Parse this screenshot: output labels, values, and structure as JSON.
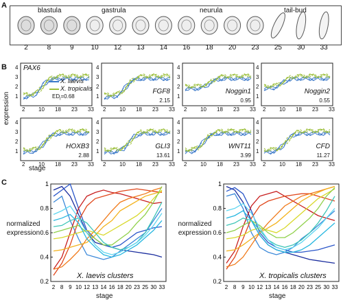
{
  "panels": {
    "a": "A",
    "b": "B",
    "c": "C"
  },
  "panelA": {
    "groups": [
      "blastula",
      "gastrula",
      "neurula",
      "tail-bud"
    ],
    "stages": [
      "2",
      "8",
      "9",
      "10",
      "12",
      "13",
      "14",
      "16",
      "18",
      "20",
      "23",
      "25",
      "30",
      "33"
    ]
  },
  "panelB": {
    "ylabel": "expression",
    "xlabel": "stage",
    "ed_label": "ED",
    "ed_sub": "i",
    "legend": [
      {
        "name": "X. laevis",
        "color": "#3a78c9"
      },
      {
        "name": "X. tropicalis",
        "color": "#9cbf3a"
      }
    ],
    "x_ticks": [
      "2",
      "10",
      "18",
      "23",
      "33"
    ],
    "genes": [
      {
        "name": "PAX6",
        "value": "0.68",
        "y_ticks": [
          "4",
          "3",
          "2",
          "1"
        ]
      },
      {
        "name": "FGF8",
        "value": "2.15",
        "y_ticks": [
          "4",
          "3",
          "2",
          "1"
        ]
      },
      {
        "name": "Noggin1",
        "value": "0.95",
        "y_ticks": [
          "4",
          "3",
          "2",
          "1"
        ]
      },
      {
        "name": "Noggin2",
        "value": "0.55",
        "y_ticks": [
          "4",
          "3",
          "2",
          "1"
        ]
      },
      {
        "name": "HOXB3",
        "value": "2.88",
        "y_ticks": [
          "4",
          "3",
          "2",
          "1"
        ]
      },
      {
        "name": "GLI3",
        "value": "13.61",
        "y_ticks": [
          "4",
          "3",
          "2",
          "1"
        ]
      },
      {
        "name": "WNT11",
        "value": "3.99",
        "y_ticks": [
          "4",
          "3",
          "2",
          "1"
        ]
      },
      {
        "name": "CFD",
        "value": "11.27",
        "y_ticks": [
          "4",
          "3",
          "2",
          "1"
        ]
      }
    ]
  },
  "panelC": {
    "ylabel_line1": "normalized",
    "ylabel_line2": "expression",
    "xlabel": "stage",
    "y_ticks": [
      "1",
      "0.8",
      "0.6",
      "0.4",
      "0.2"
    ],
    "x_ticks": [
      "2",
      "8",
      "9",
      "10",
      "12",
      "13",
      "14",
      "16",
      "18",
      "20",
      "23",
      "25",
      "30",
      "33"
    ],
    "left_title": "X. laevis clusters",
    "right_title": "X. tropicalis clusters"
  },
  "colors": {
    "laevis": "#3a78c9",
    "tropicalis": "#9cbf3a"
  },
  "chart_data": [
    {
      "type": "line",
      "title": "X. laevis clusters",
      "xlabel": "stage",
      "ylabel": "normalized expression",
      "ylim": [
        0.2,
        1
      ],
      "x": [
        "2",
        "8",
        "9",
        "10",
        "12",
        "13",
        "14",
        "16",
        "18",
        "20",
        "23",
        "25",
        "30",
        "33"
      ],
      "series": [
        {
          "values": [
            0.95,
            0.98,
            0.9,
            0.75,
            0.6,
            0.52,
            0.5,
            0.48,
            0.46,
            0.45,
            0.44,
            0.43,
            0.42,
            0.4
          ],
          "color": "#1a2d9e"
        },
        {
          "values": [
            0.9,
            0.95,
            1.0,
            0.8,
            0.62,
            0.55,
            0.5,
            0.48,
            0.5,
            0.55,
            0.6,
            0.62,
            0.64,
            0.65
          ],
          "color": "#2a56c9"
        },
        {
          "values": [
            0.85,
            0.9,
            0.7,
            0.55,
            0.42,
            0.4,
            0.38,
            0.4,
            0.45,
            0.5,
            0.55,
            0.6,
            0.7,
            0.8
          ],
          "color": "#3a88d9"
        },
        {
          "values": [
            0.3,
            0.4,
            0.6,
            0.8,
            0.9,
            0.93,
            0.95,
            0.93,
            0.92,
            0.9,
            0.88,
            0.86,
            0.84,
            0.85
          ],
          "color": "#c81e1e"
        },
        {
          "values": [
            0.25,
            0.35,
            0.5,
            0.7,
            0.82,
            0.88,
            0.9,
            0.92,
            0.94,
            0.95,
            0.96,
            0.95,
            0.94,
            0.93
          ],
          "color": "#e0461a"
        },
        {
          "values": [
            0.3,
            0.32,
            0.38,
            0.45,
            0.55,
            0.62,
            0.7,
            0.78,
            0.85,
            0.88,
            0.9,
            0.92,
            0.95,
            0.97
          ],
          "color": "#f07a1a"
        },
        {
          "values": [
            0.45,
            0.46,
            0.48,
            0.5,
            0.52,
            0.58,
            0.65,
            0.7,
            0.78,
            0.82,
            0.86,
            0.9,
            0.92,
            0.94
          ],
          "color": "#f3b21c"
        },
        {
          "values": [
            0.55,
            0.56,
            0.58,
            0.6,
            0.62,
            0.6,
            0.58,
            0.62,
            0.66,
            0.7,
            0.74,
            0.8,
            0.88,
            0.95
          ],
          "color": "#d8d82a"
        },
        {
          "values": [
            0.6,
            0.62,
            0.64,
            0.66,
            0.6,
            0.55,
            0.5,
            0.5,
            0.55,
            0.6,
            0.68,
            0.75,
            0.85,
            0.98
          ],
          "color": "#8fd04a"
        },
        {
          "values": [
            0.65,
            0.66,
            0.7,
            0.72,
            0.68,
            0.6,
            0.52,
            0.48,
            0.46,
            0.48,
            0.52,
            0.6,
            0.72,
            0.85
          ],
          "color": "#3fc6b8"
        },
        {
          "values": [
            0.7,
            0.72,
            0.75,
            0.68,
            0.55,
            0.48,
            0.42,
            0.4,
            0.42,
            0.46,
            0.5,
            0.56,
            0.62,
            0.7
          ],
          "color": "#26b7e0"
        },
        {
          "values": [
            0.75,
            0.78,
            0.82,
            0.72,
            0.6,
            0.5,
            0.44,
            0.42,
            0.44,
            0.48,
            0.52,
            0.58,
            0.66,
            0.76
          ],
          "color": "#5fd6f0"
        }
      ]
    },
    {
      "type": "line",
      "title": "X. tropicalis clusters",
      "xlabel": "stage",
      "ylabel": "normalized expression",
      "ylim": [
        0.2,
        1
      ],
      "x": [
        "2",
        "8",
        "9",
        "10",
        "12",
        "13",
        "14",
        "16",
        "18",
        "20",
        "23",
        "25",
        "30",
        "33"
      ],
      "series": [
        {
          "values": [
            0.98,
            0.95,
            0.85,
            0.7,
            0.58,
            0.5,
            0.46,
            0.44,
            0.42,
            0.4,
            0.38,
            0.37,
            0.36,
            0.35
          ],
          "color": "#1a2d9e"
        },
        {
          "values": [
            0.94,
            0.97,
            0.92,
            0.78,
            0.6,
            0.52,
            0.48,
            0.46,
            0.44,
            0.44,
            0.45,
            0.46,
            0.48,
            0.5
          ],
          "color": "#2a56c9"
        },
        {
          "values": [
            0.9,
            0.92,
            0.8,
            0.6,
            0.48,
            0.44,
            0.42,
            0.44,
            0.48,
            0.55,
            0.6,
            0.66,
            0.72,
            0.78
          ],
          "color": "#3a88d9"
        },
        {
          "values": [
            0.35,
            0.45,
            0.65,
            0.82,
            0.9,
            0.92,
            0.94,
            0.9,
            0.86,
            0.82,
            0.78,
            0.74,
            0.72,
            0.7
          ],
          "color": "#c81e1e"
        },
        {
          "values": [
            0.3,
            0.4,
            0.55,
            0.72,
            0.82,
            0.86,
            0.88,
            0.9,
            0.91,
            0.92,
            0.92,
            0.9,
            0.88,
            0.86
          ],
          "color": "#e0461a"
        },
        {
          "values": [
            0.32,
            0.34,
            0.4,
            0.5,
            0.6,
            0.68,
            0.75,
            0.82,
            0.86,
            0.9,
            0.92,
            0.94,
            0.96,
            0.98
          ],
          "color": "#f07a1a"
        },
        {
          "values": [
            0.45,
            0.46,
            0.5,
            0.55,
            0.6,
            0.64,
            0.68,
            0.74,
            0.8,
            0.86,
            0.9,
            0.93,
            0.96,
            0.98
          ],
          "color": "#f3b21c"
        },
        {
          "values": [
            0.55,
            0.56,
            0.58,
            0.62,
            0.64,
            0.62,
            0.6,
            0.64,
            0.7,
            0.76,
            0.82,
            0.88,
            0.92,
            0.96
          ],
          "color": "#d8d82a"
        },
        {
          "values": [
            0.6,
            0.62,
            0.66,
            0.7,
            0.66,
            0.6,
            0.56,
            0.56,
            0.6,
            0.66,
            0.72,
            0.8,
            0.9,
            0.97
          ],
          "color": "#8fd04a"
        },
        {
          "values": [
            0.66,
            0.68,
            0.72,
            0.7,
            0.62,
            0.54,
            0.5,
            0.48,
            0.5,
            0.54,
            0.6,
            0.68,
            0.78,
            0.9
          ],
          "color": "#3fc6b8"
        },
        {
          "values": [
            0.72,
            0.74,
            0.78,
            0.7,
            0.58,
            0.5,
            0.46,
            0.44,
            0.44,
            0.46,
            0.5,
            0.56,
            0.62,
            0.68
          ],
          "color": "#26b7e0"
        },
        {
          "values": [
            0.78,
            0.8,
            0.84,
            0.76,
            0.64,
            0.54,
            0.48,
            0.46,
            0.48,
            0.52,
            0.58,
            0.64,
            0.72,
            0.8
          ],
          "color": "#5fd6f0"
        }
      ]
    }
  ]
}
